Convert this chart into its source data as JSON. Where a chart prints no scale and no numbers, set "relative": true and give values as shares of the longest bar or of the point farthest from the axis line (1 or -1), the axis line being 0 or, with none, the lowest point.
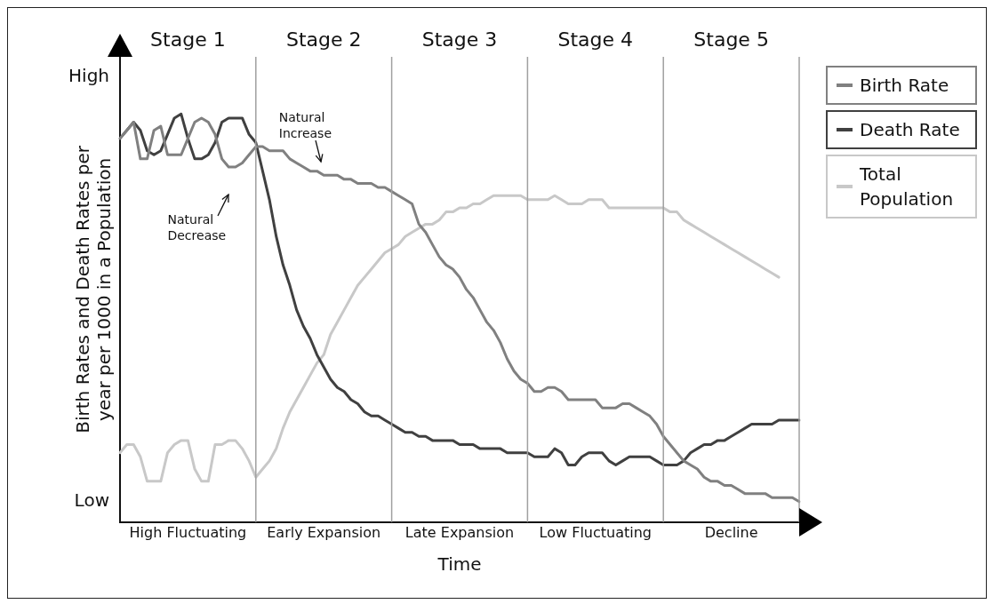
{
  "chart_data": {
    "type": "line",
    "xlabel": "Time",
    "ylabel": "Birth Rates and Death Rates per year per 1000 in a Population",
    "relative": true,
    "categories": [
      null,
      null,
      null,
      null,
      null,
      null,
      null,
      null,
      null,
      null,
      "High Fluctuating",
      null,
      null,
      null,
      null,
      null,
      null,
      null,
      null,
      null,
      null,
      null,
      null,
      null,
      null,
      null,
      null,
      null,
      null,
      null,
      "Early Expansion",
      null,
      null,
      null,
      null,
      null,
      null,
      null,
      null,
      null,
      null,
      null,
      null,
      null,
      null,
      null,
      null,
      null,
      null,
      null,
      "Late Expansion",
      null,
      null,
      null,
      null,
      null,
      null,
      null,
      null,
      null,
      null,
      null,
      null,
      null,
      null,
      null,
      null,
      null,
      null,
      null,
      "Low Fluctuating",
      null,
      null,
      null,
      null,
      null,
      null,
      null,
      null,
      null,
      null,
      null,
      null,
      null,
      null,
      null,
      null,
      null,
      null,
      null,
      "Decline",
      null,
      null,
      null,
      null,
      null,
      null,
      null,
      null,
      null,
      null
    ],
    "grid": false,
    "legend": "right",
    "marker": "none",
    "line_style": "solid",
    "annotations": [
      "Stage 1",
      "Stage 2",
      "Stage 3",
      "Stage 4",
      "Stage 5",
      "High",
      "Low",
      "Natural Increase",
      "Natural Decrease"
    ],
    "series": [
      {
        "name": "Birth Rate",
        "color": "#808080",
        "values": [
          0.94,
          0.96,
          0.98,
          0.89,
          0.89,
          0.96,
          0.97,
          0.9,
          0.9,
          0.9,
          0.94,
          0.98,
          0.99,
          0.98,
          0.95,
          0.89,
          0.87,
          0.87,
          0.88,
          0.9,
          0.92,
          0.92,
          0.91,
          0.91,
          0.91,
          0.89,
          0.88,
          0.87,
          0.86,
          0.86,
          0.85,
          0.85,
          0.85,
          0.84,
          0.84,
          0.83,
          0.83,
          0.83,
          0.82,
          0.82,
          0.81,
          0.8,
          0.79,
          0.78,
          0.73,
          0.71,
          0.68,
          0.65,
          0.63,
          0.62,
          0.6,
          0.57,
          0.55,
          0.52,
          0.49,
          0.47,
          0.44,
          0.4,
          0.37,
          0.35,
          0.34,
          0.32,
          0.32,
          0.33,
          0.33,
          0.32,
          0.3,
          0.3,
          0.3,
          0.3,
          0.3,
          0.28,
          0.28,
          0.28,
          0.29,
          0.29,
          0.28,
          0.27,
          0.26,
          0.24,
          0.21,
          0.19,
          0.17,
          0.15,
          0.14,
          0.13,
          0.11,
          0.1,
          0.1,
          0.09,
          0.09,
          0.08,
          0.07,
          0.07,
          0.07,
          0.07,
          0.06,
          0.06,
          0.06,
          0.06,
          0.05
        ]
      },
      {
        "name": "Death Rate",
        "color": "#404040",
        "values": [
          0.94,
          0.96,
          0.98,
          0.96,
          0.91,
          0.9,
          0.91,
          0.95,
          0.99,
          1.0,
          0.94,
          0.89,
          0.89,
          0.9,
          0.93,
          0.98,
          0.99,
          0.99,
          0.99,
          0.95,
          0.93,
          0.86,
          0.79,
          0.7,
          0.63,
          0.58,
          0.52,
          0.48,
          0.45,
          0.41,
          0.38,
          0.35,
          0.33,
          0.32,
          0.3,
          0.29,
          0.27,
          0.26,
          0.26,
          0.25,
          0.24,
          0.23,
          0.22,
          0.22,
          0.21,
          0.21,
          0.2,
          0.2,
          0.2,
          0.2,
          0.19,
          0.19,
          0.19,
          0.18,
          0.18,
          0.18,
          0.18,
          0.17,
          0.17,
          0.17,
          0.17,
          0.16,
          0.16,
          0.16,
          0.18,
          0.17,
          0.14,
          0.14,
          0.16,
          0.17,
          0.17,
          0.17,
          0.15,
          0.14,
          0.15,
          0.16,
          0.16,
          0.16,
          0.16,
          0.15,
          0.14,
          0.14,
          0.14,
          0.15,
          0.17,
          0.18,
          0.19,
          0.19,
          0.2,
          0.2,
          0.21,
          0.22,
          0.23,
          0.24,
          0.24,
          0.24,
          0.24,
          0.25,
          0.25,
          0.25,
          0.25
        ]
      },
      {
        "name": "Total Population",
        "color": "#c8c8c8",
        "values": [
          0.17,
          0.19,
          0.19,
          0.16,
          0.1,
          0.1,
          0.1,
          0.17,
          0.19,
          0.2,
          0.2,
          0.13,
          0.1,
          0.1,
          0.19,
          0.19,
          0.2,
          0.2,
          0.18,
          0.15,
          0.11,
          0.13,
          0.15,
          0.18,
          0.23,
          0.27,
          0.3,
          0.33,
          0.36,
          0.39,
          0.41,
          0.46,
          0.49,
          0.52,
          0.55,
          0.58,
          0.6,
          0.62,
          0.64,
          0.66,
          0.67,
          0.68,
          0.7,
          0.71,
          0.72,
          0.73,
          0.73,
          0.74,
          0.76,
          0.76,
          0.77,
          0.77,
          0.78,
          0.78,
          0.79,
          0.8,
          0.8,
          0.8,
          0.8,
          0.8,
          0.79,
          0.79,
          0.79,
          0.79,
          0.8,
          0.79,
          0.78,
          0.78,
          0.78,
          0.79,
          0.79,
          0.79,
          0.77,
          0.77,
          0.77,
          0.77,
          0.77,
          0.77,
          0.77,
          0.77,
          0.77,
          0.76,
          0.76,
          0.74,
          0.73,
          0.72,
          0.71,
          0.7,
          0.69,
          0.68,
          0.67,
          0.66,
          0.65,
          0.64,
          0.63,
          0.62,
          0.61,
          0.6,
          null,
          null,
          null
        ]
      }
    ]
  }
}
